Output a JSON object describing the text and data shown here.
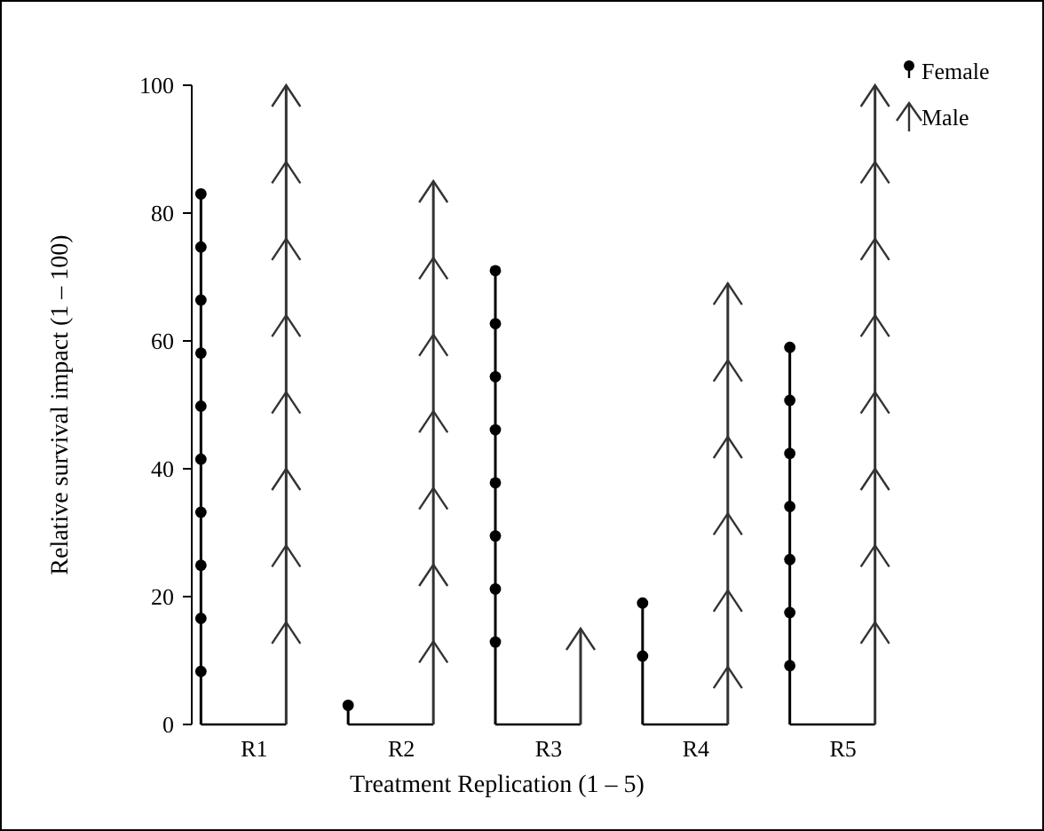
{
  "chart_data": {
    "type": "bar",
    "xlabel": "Treatment Replication (1 – 5)",
    "ylabel": "Relative survival impact (1 – 100)",
    "categories": [
      "R1",
      "R2",
      "R3",
      "R4",
      "R5"
    ],
    "series": [
      {
        "name": "Female",
        "color": "#000000",
        "values": [
          83,
          3,
          71,
          19,
          59
        ],
        "marker": "circle"
      },
      {
        "name": "Male",
        "color": "#333333",
        "values": [
          100,
          85,
          15,
          69,
          100
        ],
        "marker": "arrow"
      }
    ],
    "ylim": [
      0,
      100
    ],
    "yticks": [
      0,
      20,
      40,
      60,
      80,
      100
    ],
    "legend": "top right"
  }
}
